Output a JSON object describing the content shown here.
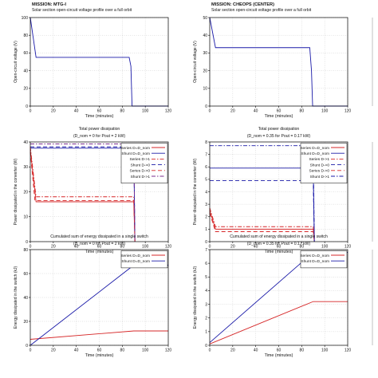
{
  "mission_prefix": "MISSION:",
  "columns": [
    {
      "mission": "MTG-I",
      "charts": [
        {
          "type": "line",
          "title": "Solar section open-circuit voltage profile over a full orbit",
          "subtitle": "",
          "xlabel": "Time (minutes)",
          "ylabel": "Open-circuit voltage (V)",
          "xlim": [
            0,
            120
          ],
          "ylim": [
            0,
            100
          ],
          "xticks": [
            0,
            20,
            40,
            60,
            80,
            100,
            120
          ],
          "yticks": [
            0,
            20,
            40,
            60,
            80,
            100
          ],
          "legend": [],
          "series": [
            {
              "name": "",
              "color": "#1a1aa8",
              "dash": "",
              "points": [
                [
                  0,
                  100
                ],
                [
                  5,
                  55
                ],
                [
                  86,
                  55
                ],
                [
                  87.5,
                  45
                ],
                [
                  88.5,
                  0
                ],
                [
                  120,
                  0
                ]
              ]
            }
          ]
        },
        {
          "type": "line",
          "title": "Total power dissipation",
          "subtitle": "(D_nom = 0 for Pout = 2 kW)",
          "xlabel": "Time (minutes)",
          "ylabel": "Power dissipated in the converter (W)",
          "xlim": [
            0,
            120
          ],
          "ylim": [
            0,
            40
          ],
          "xticks": [
            0,
            20,
            40,
            60,
            80,
            100,
            120
          ],
          "yticks": [
            0,
            10,
            20,
            30,
            40
          ],
          "legend": [
            "Series D=D_nom",
            "Shunt D=D_nom",
            "Series D->1",
            "Shunt D->0",
            "Series D->0",
            "Shunt D->1"
          ],
          "series": [
            {
              "name": "Series D=D_nom",
              "color": "#d62728",
              "dash": "",
              "points": [
                [
                  0,
                  37
                ],
                [
                  5,
                  16
                ],
                [
                  90,
                  16
                ],
                [
                  91,
                  0
                ]
              ]
            },
            {
              "name": "Shunt D=D_nom",
              "color": "#1a1aa8",
              "dash": "",
              "points": [
                [
                  0,
                  37.5
                ],
                [
                  90,
                  37.5
                ],
                [
                  91,
                  0
                ]
              ]
            },
            {
              "name": "Series D->1",
              "color": "#d62728",
              "dash": "5,2,1.5,2",
              "points": [
                [
                  0,
                  38
                ],
                [
                  5,
                  18
                ],
                [
                  90,
                  18
                ],
                [
                  91,
                  0
                ]
              ]
            },
            {
              "name": "Shunt D->0",
              "color": "#1a1aa8",
              "dash": "5,3",
              "points": [
                [
                  0,
                  38
                ],
                [
                  90,
                  38
                ],
                [
                  91,
                  0
                ]
              ]
            },
            {
              "name": "Series D->0",
              "color": "#d62728",
              "dash": "5,3",
              "points": [
                [
                  0,
                  36
                ],
                [
                  4,
                  16.5
                ],
                [
                  90,
                  16.5
                ],
                [
                  91,
                  0
                ]
              ]
            },
            {
              "name": "Shunt D->1",
              "color": "#7b2d8e",
              "dash": "5,2,1.5,2",
              "points": [
                [
                  0,
                  39.2
                ],
                [
                  90,
                  39.2
                ],
                [
                  91,
                  0
                ]
              ]
            }
          ]
        },
        {
          "type": "line",
          "title": "Cumulated sum of energy dissipated in a single switch",
          "subtitle": "(D_nom = 0 for Pout = 2 kW)",
          "xlabel": "Time (minutes)",
          "ylabel": "Energy dissipated in the switch (kJ)",
          "xlim": [
            0,
            120
          ],
          "ylim": [
            0,
            80
          ],
          "xticks": [
            0,
            20,
            40,
            60,
            80,
            100,
            120
          ],
          "yticks": [
            0,
            20,
            40,
            60,
            80
          ],
          "legend": [
            "Series D=D_nom",
            "Shunt D=D_nom"
          ],
          "series": [
            {
              "name": "Series D=D_nom",
              "color": "#d62728",
              "dash": "",
              "points": [
                [
                  0,
                  5
                ],
                [
                  90,
                  12
                ],
                [
                  120,
                  12
                ]
              ]
            },
            {
              "name": "Shunt D=D_nom",
              "color": "#1a1aa8",
              "dash": "",
              "points": [
                [
                  0,
                  0
                ],
                [
                  90,
                  67
                ],
                [
                  120,
                  67
                ]
              ]
            }
          ]
        }
      ]
    },
    {
      "mission": "CHEOPS (CENTER)",
      "charts": [
        {
          "type": "line",
          "title": "Solar section open-circuit voltage profile over a full orbit",
          "subtitle": "",
          "xlabel": "Time (minutes)",
          "ylabel": "Open-circuit voltage (V)",
          "xlim": [
            0,
            120
          ],
          "ylim": [
            0,
            50
          ],
          "xticks": [
            0,
            20,
            40,
            60,
            80,
            100,
            120
          ],
          "yticks": [
            0,
            10,
            20,
            30,
            40,
            50
          ],
          "legend": [],
          "series": [
            {
              "name": "",
              "color": "#1a1aa8",
              "dash": "",
              "points": [
                [
                  0,
                  50
                ],
                [
                  5,
                  33
                ],
                [
                  87,
                  33
                ],
                [
                  88.5,
                  20
                ],
                [
                  89.5,
                  0
                ],
                [
                  120,
                  0
                ]
              ]
            }
          ]
        },
        {
          "type": "line",
          "title": "Total power dissipation",
          "subtitle": "(D_nom = 0.35 for Pout = 0.17 kW)",
          "xlabel": "Time (minutes)",
          "ylabel": "Power dissipated in the converter (W)",
          "xlim": [
            0,
            120
          ],
          "ylim": [
            0,
            8
          ],
          "xticks": [
            0,
            20,
            40,
            60,
            80,
            100,
            120
          ],
          "yticks": [
            0,
            1,
            2,
            3,
            4,
            5,
            6,
            7,
            8
          ],
          "legend": [
            "Series D=D_nom",
            "Shunt D=D_nom",
            "Series D->1",
            "Shunt D->0",
            "Series D->0",
            "Shunt D->1"
          ],
          "series": [
            {
              "name": "Series D=D_nom",
              "color": "#d62728",
              "dash": "",
              "points": [
                [
                  0,
                  2.5
                ],
                [
                  5,
                  1
                ],
                [
                  90,
                  1
                ],
                [
                  91,
                  0
                ]
              ]
            },
            {
              "name": "Shunt D=D_nom",
              "color": "#1a1aa8",
              "dash": "",
              "points": [
                [
                  0,
                  5.9
                ],
                [
                  90,
                  5.9
                ],
                [
                  91,
                  0
                ]
              ]
            },
            {
              "name": "Series D->1",
              "color": "#d62728",
              "dash": "5,2,1.5,2",
              "points": [
                [
                  0,
                  2.7
                ],
                [
                  5,
                  1.2
                ],
                [
                  90,
                  1.2
                ],
                [
                  91,
                  0
                ]
              ]
            },
            {
              "name": "Shunt D->0",
              "color": "#1a1aa8",
              "dash": "5,3",
              "points": [
                [
                  0,
                  4.9
                ],
                [
                  90,
                  4.9
                ],
                [
                  91,
                  0
                ]
              ]
            },
            {
              "name": "Series D->0",
              "color": "#d62728",
              "dash": "5,3",
              "points": [
                [
                  0,
                  2.3
                ],
                [
                  5,
                  0.8
                ],
                [
                  90,
                  0.8
                ],
                [
                  91,
                  0
                ]
              ]
            },
            {
              "name": "Shunt D->1",
              "color": "#1a1aa8",
              "dash": "5,2,1.5,2",
              "points": [
                [
                  0,
                  7.7
                ],
                [
                  90,
                  7.7
                ],
                [
                  91,
                  0
                ]
              ]
            }
          ]
        },
        {
          "type": "line",
          "title": "Cumulated sum of energy dissipated in a single switch",
          "subtitle": "(D_nom = 0.35 for Pout = 0.17 kW)",
          "xlabel": "Time (minutes)",
          "ylabel": "Energy dissipated in the switch (kJ)",
          "xlim": [
            0,
            120
          ],
          "ylim": [
            0,
            7
          ],
          "xticks": [
            0,
            20,
            40,
            60,
            80,
            100,
            120
          ],
          "yticks": [
            0,
            1,
            2,
            3,
            4,
            5,
            6,
            7
          ],
          "legend": [
            "Series D=D_nom",
            "Shunt D=D_nom"
          ],
          "series": [
            {
              "name": "Series D=D_nom",
              "color": "#d62728",
              "dash": "",
              "points": [
                [
                  0,
                  0.1
                ],
                [
                  90,
                  3.2
                ],
                [
                  120,
                  3.2
                ]
              ]
            },
            {
              "name": "Shunt D=D_nom",
              "color": "#1a1aa8",
              "dash": "",
              "points": [
                [
                  0,
                  0.2
                ],
                [
                  90,
                  6.8
                ],
                [
                  120,
                  6.8
                ]
              ]
            }
          ]
        }
      ]
    }
  ],
  "chart_data": [
    {
      "type": "line",
      "title": "Solar section open-circuit voltage profile over a full orbit",
      "mission": "MTG-I",
      "xlabel": "Time (minutes)",
      "ylabel": "Open-circuit voltage (V)",
      "xlim": [
        0,
        120
      ],
      "ylim": [
        0,
        100
      ],
      "series": [
        {
          "name": "",
          "x": [
            0,
            5,
            86,
            87.5,
            88.5,
            120
          ],
          "y": [
            100,
            55,
            55,
            45,
            0,
            0
          ]
        }
      ]
    },
    {
      "type": "line",
      "title": "Total power dissipation",
      "subtitle": "(D_nom = 0 for Pout = 2 kW)",
      "mission": "MTG-I",
      "xlabel": "Time (minutes)",
      "ylabel": "Power dissipated in the converter (W)",
      "xlim": [
        0,
        120
      ],
      "ylim": [
        0,
        40
      ],
      "series": [
        {
          "name": "Series D=D_nom",
          "x": [
            0,
            5,
            90,
            91
          ],
          "y": [
            37,
            16,
            16,
            0
          ]
        },
        {
          "name": "Shunt D=D_nom",
          "x": [
            0,
            90,
            91
          ],
          "y": [
            37.5,
            37.5,
            0
          ]
        },
        {
          "name": "Series D->1",
          "x": [
            0,
            5,
            90,
            91
          ],
          "y": [
            38,
            18,
            18,
            0
          ]
        },
        {
          "name": "Shunt D->0",
          "x": [
            0,
            90,
            91
          ],
          "y": [
            38,
            38,
            0
          ]
        },
        {
          "name": "Series D->0",
          "x": [
            0,
            4,
            90,
            91
          ],
          "y": [
            36,
            16.5,
            16.5,
            0
          ]
        },
        {
          "name": "Shunt D->1",
          "x": [
            0,
            90,
            91
          ],
          "y": [
            39.2,
            39.2,
            0
          ]
        }
      ]
    },
    {
      "type": "line",
      "title": "Cumulated sum of energy dissipated in a single switch",
      "subtitle": "(D_nom = 0 for Pout = 2 kW)",
      "mission": "MTG-I",
      "xlabel": "Time (minutes)",
      "ylabel": "Energy dissipated in the switch (kJ)",
      "xlim": [
        0,
        120
      ],
      "ylim": [
        0,
        80
      ],
      "series": [
        {
          "name": "Series D=D_nom",
          "x": [
            0,
            90,
            120
          ],
          "y": [
            5,
            12,
            12
          ]
        },
        {
          "name": "Shunt D=D_nom",
          "x": [
            0,
            90,
            120
          ],
          "y": [
            0,
            67,
            67
          ]
        }
      ]
    },
    {
      "type": "line",
      "title": "Solar section open-circuit voltage profile over a full orbit",
      "mission": "CHEOPS (CENTER)",
      "xlabel": "Time (minutes)",
      "ylabel": "Open-circuit voltage (V)",
      "xlim": [
        0,
        120
      ],
      "ylim": [
        0,
        50
      ],
      "series": [
        {
          "name": "",
          "x": [
            0,
            5,
            87,
            88.5,
            89.5,
            120
          ],
          "y": [
            50,
            33,
            33,
            20,
            0,
            0
          ]
        }
      ]
    },
    {
      "type": "line",
      "title": "Total power dissipation",
      "subtitle": "(D_nom = 0.35 for Pout = 0.17 kW)",
      "mission": "CHEOPS (CENTER)",
      "xlabel": "Time (minutes)",
      "ylabel": "Power dissipated in the converter (W)",
      "xlim": [
        0,
        120
      ],
      "ylim": [
        0,
        8
      ],
      "series": [
        {
          "name": "Series D=D_nom",
          "x": [
            0,
            5,
            90,
            91
          ],
          "y": [
            2.5,
            1,
            1,
            0
          ]
        },
        {
          "name": "Shunt D=D_nom",
          "x": [
            0,
            90,
            91
          ],
          "y": [
            5.9,
            5.9,
            0
          ]
        },
        {
          "name": "Series D->1",
          "x": [
            0,
            5,
            90,
            91
          ],
          "y": [
            2.7,
            1.2,
            1.2,
            0
          ]
        },
        {
          "name": "Shunt D->0",
          "x": [
            0,
            90,
            91
          ],
          "y": [
            4.9,
            4.9,
            0
          ]
        },
        {
          "name": "Series D->0",
          "x": [
            0,
            5,
            90,
            91
          ],
          "y": [
            2.3,
            0.8,
            0.8,
            0
          ]
        },
        {
          "name": "Shunt D->1",
          "x": [
            0,
            90,
            91
          ],
          "y": [
            7.7,
            7.7,
            0
          ]
        }
      ]
    },
    {
      "type": "line",
      "title": "Cumulated sum of energy dissipated in a single switch",
      "subtitle": "(D_nom = 0.35 for Pout = 0.17 kW)",
      "mission": "CHEOPS (CENTER)",
      "xlabel": "Time (minutes)",
      "ylabel": "Energy dissipated in the switch (kJ)",
      "xlim": [
        0,
        120
      ],
      "ylim": [
        0,
        7
      ],
      "series": [
        {
          "name": "Series D=D_nom",
          "x": [
            0,
            90,
            120
          ],
          "y": [
            0.1,
            3.2,
            3.2
          ]
        },
        {
          "name": "Shunt D=D_nom",
          "x": [
            0,
            90,
            120
          ],
          "y": [
            0.2,
            6.8,
            6.8
          ]
        }
      ]
    }
  ]
}
